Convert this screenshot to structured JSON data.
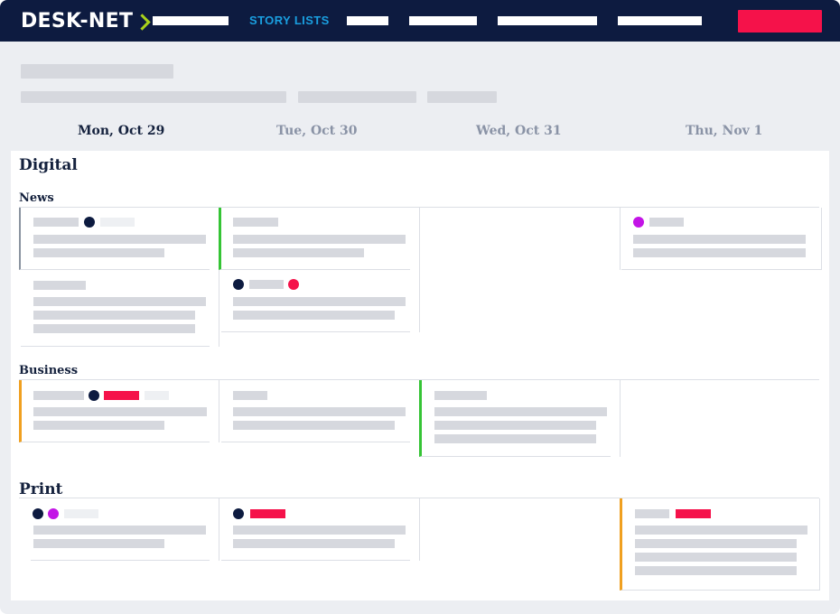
{
  "brand": {
    "name": "DESK-NET"
  },
  "nav": {
    "active_label": "STORY LISTS"
  },
  "days": [
    "Mon, Oct 29",
    "Tue, Oct 30",
    "Wed, Oct 31",
    "Thu, Nov 1"
  ],
  "sections": {
    "digital": "Digital",
    "news": "News",
    "business": "Business",
    "print": "Print"
  },
  "colors": {
    "nav_bg": "#0d1b40",
    "accent_blue": "#1a9fe0",
    "accent_red": "#f5124a",
    "status_green": "#35c435",
    "status_orange": "#f0a020",
    "status_purple": "#c314e6",
    "logo_chevron": "#a9d21b"
  }
}
